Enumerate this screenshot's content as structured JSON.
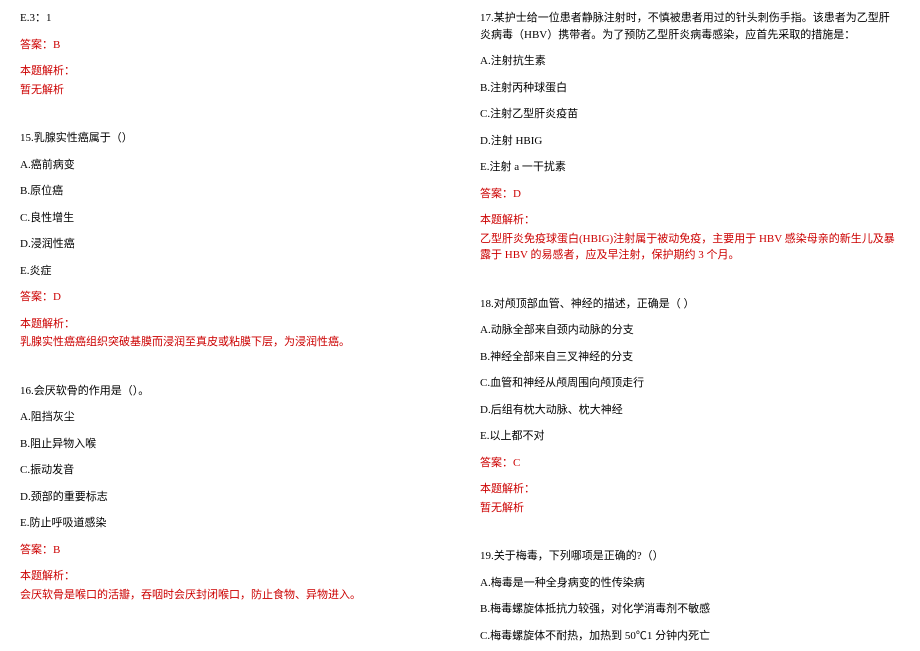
{
  "left": {
    "opt14e": "E.3：1",
    "ans14": "答案：B",
    "exp14_title": "本题解析：",
    "exp14_body": "暂无解析",
    "q15": "15.乳腺实性癌属于（）",
    "q15a": "A.癌前病变",
    "q15b": "B.原位癌",
    "q15c": "C.良性增生",
    "q15d": "D.浸润性癌",
    "q15e": "E.炎症",
    "ans15": "答案：D",
    "exp15_title": "本题解析：",
    "exp15_body": "乳腺实性癌癌组织突破基膜而浸润至真皮或粘膜下层，为浸润性癌。",
    "q16": "16.会厌软骨的作用是（）。",
    "q16a": "A.阻挡灰尘",
    "q16b": "B.阻止异物入喉",
    "q16c": "C.振动发音",
    "q16d": "D.颈部的重要标志",
    "q16e": "E.防止呼吸道感染",
    "ans16": "答案：B",
    "exp16_title": "本题解析：",
    "exp16_body": "会厌软骨是喉口的活瓣，吞咽时会厌封闭喉口，防止食物、异物进入。"
  },
  "right": {
    "q17": "17.某护士给一位患者静脉注射时，不慎被患者用过的针头刺伤手指。该患者为乙型肝炎病毒（HBV）携带者。为了预防乙型肝炎病毒感染，应首先采取的措施是：",
    "q17a": "A.注射抗生素",
    "q17b": "B.注射丙种球蛋白",
    "q17c": "C.注射乙型肝炎疫苗",
    "q17d": "D.注射 HBIG",
    "q17e": "E.注射 a 一干扰素",
    "ans17": "答案：D",
    "exp17_title": "本题解析：",
    "exp17_body": "乙型肝炎免疫球蛋白(HBIG)注射属于被动免疫，主要用于 HBV 感染母亲的新生儿及暴露于 HBV 的易感者，应及早注射，保护期约 3 个月。",
    "q18": "18.对颅顶部血管、神经的描述，正确是（   ）",
    "q18a": "A.动脉全部来自颈内动脉的分支",
    "q18b": "B.神经全部来自三叉神经的分支",
    "q18c": "C.血管和神经从颅周围向颅顶走行",
    "q18d": "D.后组有枕大动脉、枕大神经",
    "q18e": "E.以上都不对",
    "ans18": "答案：C",
    "exp18_title": "本题解析：",
    "exp18_body": "暂无解析",
    "q19": "19.关于梅毒，下列哪项是正确的?（）",
    "q19a": "A.梅毒是一种全身病变的性传染病",
    "q19b": "B.梅毒螺旋体抵抗力较强，对化学消毒剂不敏感",
    "q19c": "C.梅毒螺旋体不耐热，加热到 50℃1 分钟内死亡"
  }
}
